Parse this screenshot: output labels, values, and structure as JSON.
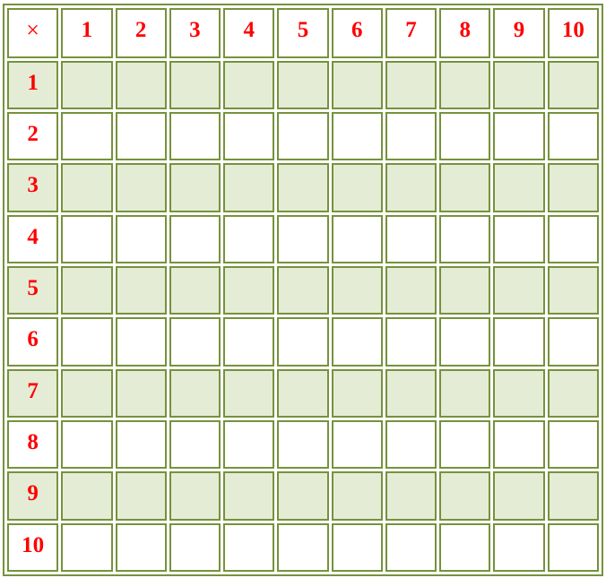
{
  "corner_symbol": "×",
  "column_headers": [
    "1",
    "2",
    "3",
    "4",
    "5",
    "6",
    "7",
    "8",
    "9",
    "10"
  ],
  "row_headers": [
    "1",
    "2",
    "3",
    "4",
    "5",
    "6",
    "7",
    "8",
    "9",
    "10"
  ],
  "colors": {
    "border": "#76923c",
    "shaded_row": "#e4ecd6",
    "header_text": "#ff0000"
  }
}
